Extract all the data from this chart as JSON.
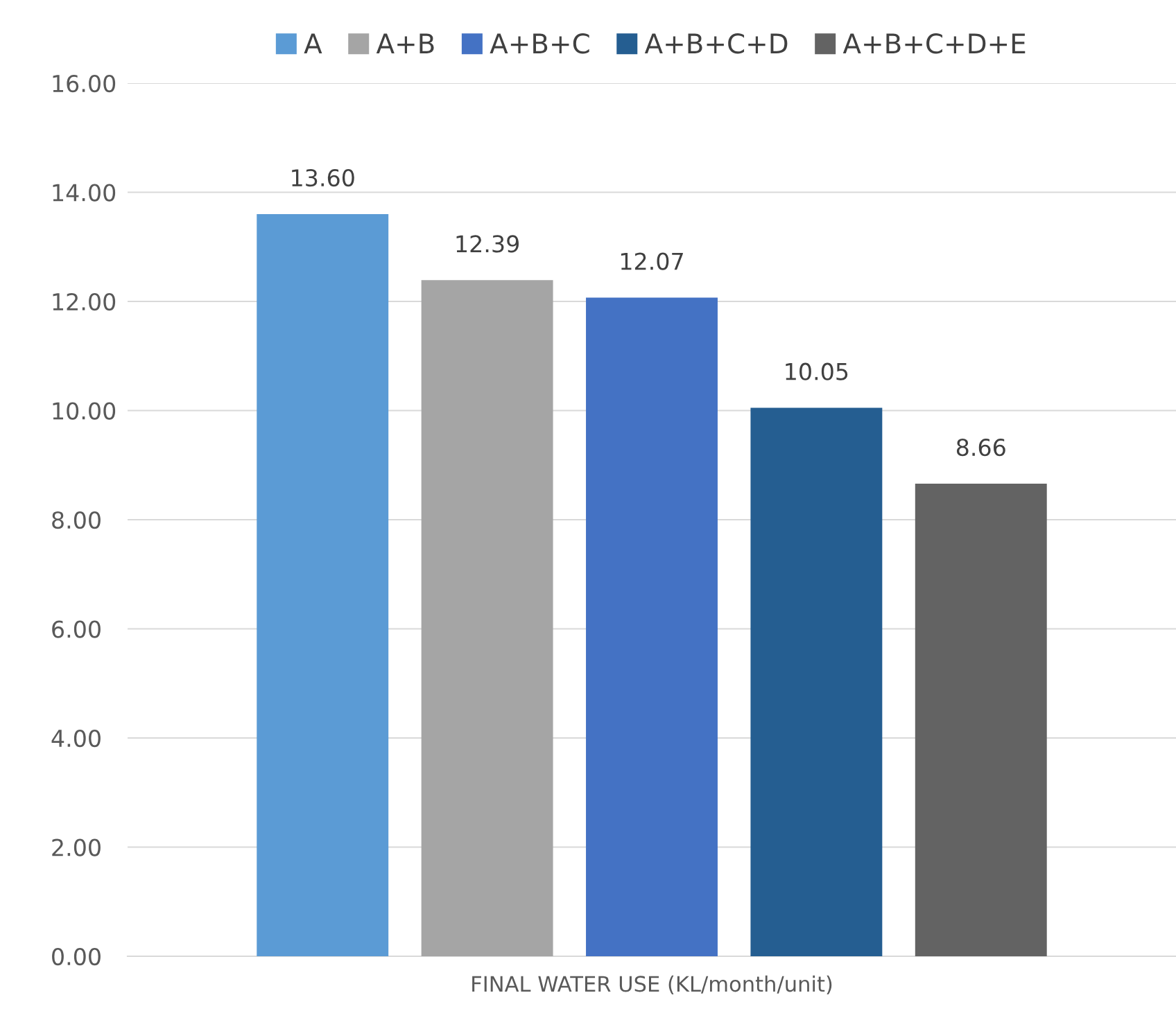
{
  "chart_data": {
    "type": "bar",
    "categories": [
      "FINAL WATER USE (KL/month/unit)"
    ],
    "series": [
      {
        "name": "A",
        "color": "#5b9bd5",
        "values": [
          13.6
        ],
        "value_labels": [
          "13.60"
        ]
      },
      {
        "name": "A+B",
        "color": "#a5a5a5",
        "values": [
          12.39
        ],
        "value_labels": [
          "12.39"
        ]
      },
      {
        "name": "A+B+C",
        "color": "#4472c4",
        "values": [
          12.07
        ],
        "value_labels": [
          "12.07"
        ]
      },
      {
        "name": "A+B+C+D",
        "color": "#255e91",
        "values": [
          10.05
        ],
        "value_labels": [
          "10.05"
        ]
      },
      {
        "name": "A+B+C+D+E",
        "color": "#636363",
        "values": [
          8.66
        ],
        "value_labels": [
          "8.66"
        ]
      }
    ],
    "ylim": [
      0,
      16
    ],
    "yticks": [
      {
        "value": 0,
        "label": "0.00"
      },
      {
        "value": 2,
        "label": "2.00"
      },
      {
        "value": 4,
        "label": "4.00"
      },
      {
        "value": 6,
        "label": "6.00"
      },
      {
        "value": 8,
        "label": "8.00"
      },
      {
        "value": 10,
        "label": "10.00"
      },
      {
        "value": 12,
        "label": "12.00"
      },
      {
        "value": 14,
        "label": "14.00"
      },
      {
        "value": 16,
        "label": "16.00"
      }
    ],
    "grid": "y",
    "legend": "top"
  }
}
